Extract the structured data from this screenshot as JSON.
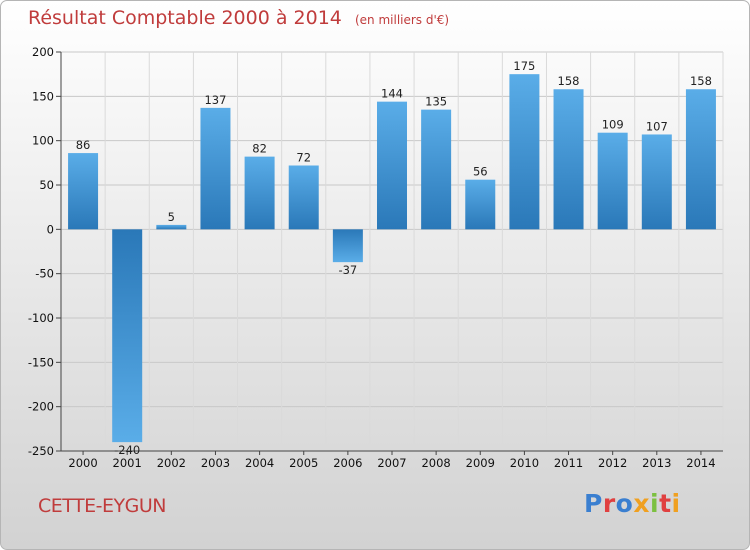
{
  "header": {
    "title": "Résultat Comptable 2000 à 2014",
    "subtitle": "(en milliers d'€)"
  },
  "footer": {
    "commune": "CETTE-EYGUN",
    "logo_text": "Proxiti"
  },
  "colors": {
    "title": "#c03c3c",
    "bar_light": "#5aade8",
    "bar_dark": "#2a78b8"
  },
  "chart_data": {
    "type": "bar",
    "title": "Résultat Comptable 2000 à 2014",
    "subtitle": "(en milliers d'€)",
    "xlabel": "",
    "ylabel": "",
    "categories": [
      "2000",
      "2001",
      "2002",
      "2003",
      "2004",
      "2005",
      "2006",
      "2007",
      "2008",
      "2009",
      "2010",
      "2011",
      "2012",
      "2013",
      "2014"
    ],
    "values": [
      86,
      -240,
      5,
      137,
      82,
      72,
      -37,
      144,
      135,
      56,
      175,
      158,
      109,
      107,
      158
    ],
    "data_labels": [
      "86",
      "-240",
      "5",
      "137",
      "82",
      "72",
      "-37",
      "144",
      "135",
      "56",
      "175",
      "158",
      "109",
      "107",
      "158"
    ],
    "ylim": [
      -250,
      200
    ],
    "yticks": [
      200,
      150,
      100,
      50,
      0,
      -50,
      -100,
      -150,
      -200,
      -250
    ],
    "ytick_labels": [
      "200",
      "150",
      "100",
      "50",
      "0",
      "-50",
      "-100",
      "-150",
      "-200",
      "-250"
    ],
    "grid": true,
    "legend": "none"
  }
}
